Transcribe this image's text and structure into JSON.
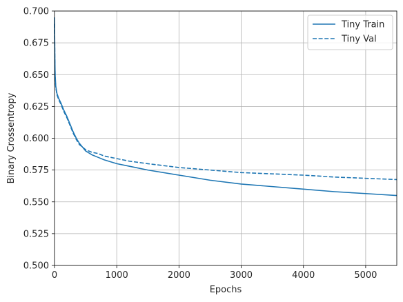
{
  "chart_data": {
    "type": "line",
    "xlabel": "Epochs",
    "ylabel": "Binary Crossentropy",
    "xlim": [
      0,
      5500
    ],
    "ylim": [
      0.5,
      0.7
    ],
    "xticks": [
      0,
      1000,
      2000,
      3000,
      4000,
      5000
    ],
    "yticks": [
      0.5,
      0.525,
      0.55,
      0.575,
      0.6,
      0.625,
      0.65,
      0.675,
      0.7
    ],
    "grid": true,
    "legend_position": "top-right",
    "series": [
      {
        "name": "Tiny Train",
        "style": "solid",
        "color": "#1f77b4",
        "x": [
          0,
          5,
          10,
          20,
          40,
          70,
          100,
          150,
          200,
          250,
          300,
          350,
          400,
          450,
          500,
          600,
          700,
          800,
          1000,
          1200,
          1500,
          2000,
          2500,
          3000,
          3500,
          4000,
          4500,
          5000,
          5500
        ],
        "y": [
          0.695,
          0.665,
          0.65,
          0.641,
          0.635,
          0.631,
          0.628,
          0.622,
          0.617,
          0.611,
          0.605,
          0.6,
          0.596,
          0.593,
          0.59,
          0.587,
          0.585,
          0.583,
          0.58,
          0.578,
          0.575,
          0.571,
          0.567,
          0.564,
          0.562,
          0.56,
          0.558,
          0.5565,
          0.555
        ]
      },
      {
        "name": "Tiny Val",
        "style": "dashed",
        "color": "#1f77b4",
        "x": [
          0,
          5,
          10,
          20,
          40,
          70,
          100,
          150,
          200,
          250,
          300,
          350,
          400,
          450,
          500,
          600,
          700,
          800,
          1000,
          1200,
          1500,
          2000,
          2500,
          3000,
          3500,
          4000,
          4500,
          5000,
          5500
        ],
        "y": [
          0.69,
          0.662,
          0.648,
          0.64,
          0.634,
          0.63,
          0.627,
          0.621,
          0.616,
          0.61,
          0.604,
          0.599,
          0.595,
          0.593,
          0.591,
          0.589,
          0.588,
          0.586,
          0.584,
          0.582,
          0.58,
          0.577,
          0.575,
          0.573,
          0.572,
          0.571,
          0.5695,
          0.5685,
          0.5675
        ]
      }
    ]
  }
}
